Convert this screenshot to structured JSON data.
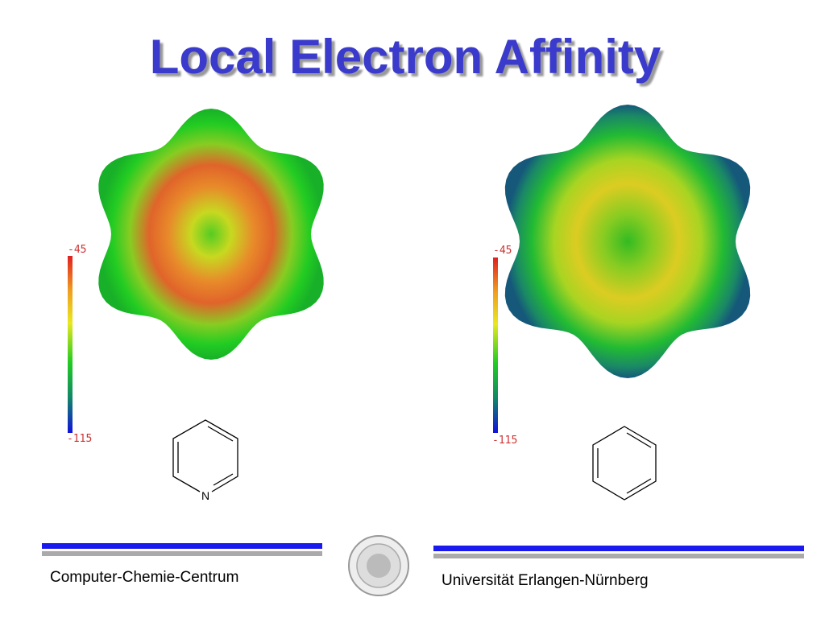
{
  "title": "Local Electron Affinity",
  "panels": [
    {
      "scale": {
        "max": "-45",
        "min": "-115"
      },
      "molecule": {
        "atom_label": "N"
      }
    },
    {
      "scale": {
        "max": "-45",
        "min": "-115"
      }
    }
  ],
  "footer": {
    "left": "Computer-Chemie-Centrum",
    "right": "Universität Erlangen-Nürnberg"
  }
}
